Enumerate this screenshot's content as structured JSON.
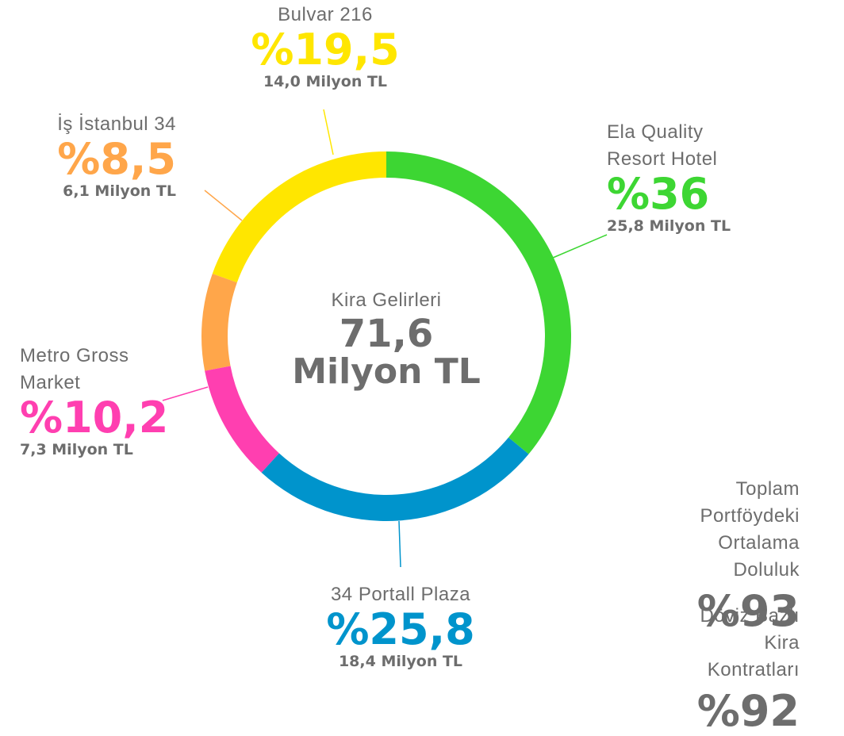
{
  "chart_data": {
    "type": "pie",
    "donut": true,
    "categories": [
      "Ela Quality Resort Hotel",
      "34 Portall Plaza",
      "Metro Gross Market",
      "İş İstanbul 34",
      "Bulvar 216"
    ],
    "values": [
      36,
      25.8,
      10.2,
      8.5,
      19.5
    ],
    "value_labels": [
      "%36",
      "%25,8",
      "%10,2",
      "%8,5",
      "%19,5"
    ],
    "amounts": [
      "25,8 Milyon TL",
      "18,4 Milyon TL",
      "7,3 Milyon TL",
      "6,1 Milyon TL",
      "14,0 Milyon TL"
    ],
    "colors": [
      "#3dd633",
      "#0094cc",
      "#ff3fb0",
      "#ffa64a",
      "#ffe600"
    ],
    "center": {
      "title": "Kira Gelirleri",
      "value": "71,6",
      "unit": "Milyon TL"
    }
  },
  "stats": [
    {
      "label": "Toplam Portföydeki Ortalama Doluluk",
      "value": "%93"
    },
    {
      "label": "Döviz Bazlı Kira Kontratları",
      "value": "%92"
    }
  ]
}
